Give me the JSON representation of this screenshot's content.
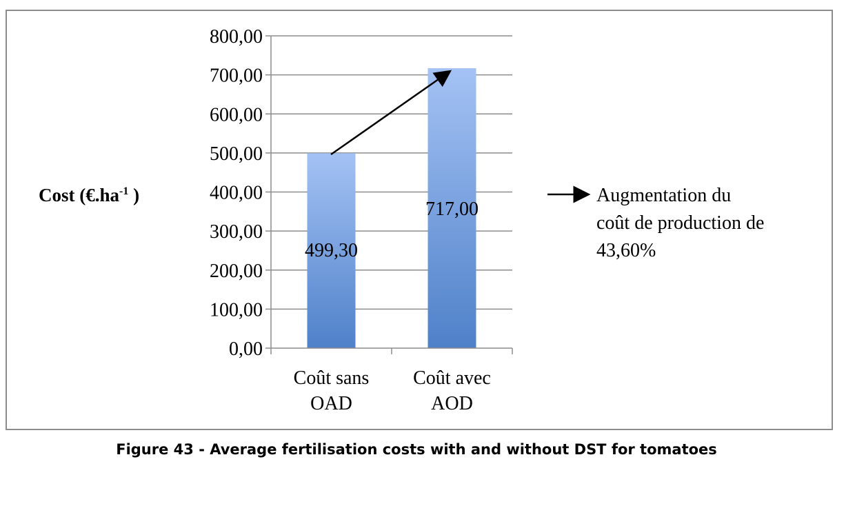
{
  "chart_data": {
    "type": "bar",
    "categories": [
      [
        "Coût sans",
        "OAD"
      ],
      [
        "Coût avec",
        "AOD"
      ]
    ],
    "values": [
      499.3,
      717.0
    ],
    "data_labels": [
      "499,30",
      "717,00"
    ],
    "ylabel": "Cost (€.ha",
    "ylabel_sup": "-1",
    "ylabel_end": " )",
    "ylim": [
      0,
      800
    ],
    "yticks": [
      "0,00",
      "100,00",
      "200,00",
      "300,00",
      "400,00",
      "500,00",
      "600,00",
      "700,00",
      "800,00"
    ],
    "ytick_values": [
      0,
      100,
      200,
      300,
      400,
      500,
      600,
      700,
      800
    ],
    "grid": true,
    "bar_color_top": "#a4c2f4",
    "bar_color_bottom": "#4f81c9",
    "annotation_lines": [
      "Augmentation du",
      "coût de production de",
      "43,60%"
    ]
  },
  "caption": "Figure 43 - Average fertilisation costs with and without DST for tomatoes"
}
